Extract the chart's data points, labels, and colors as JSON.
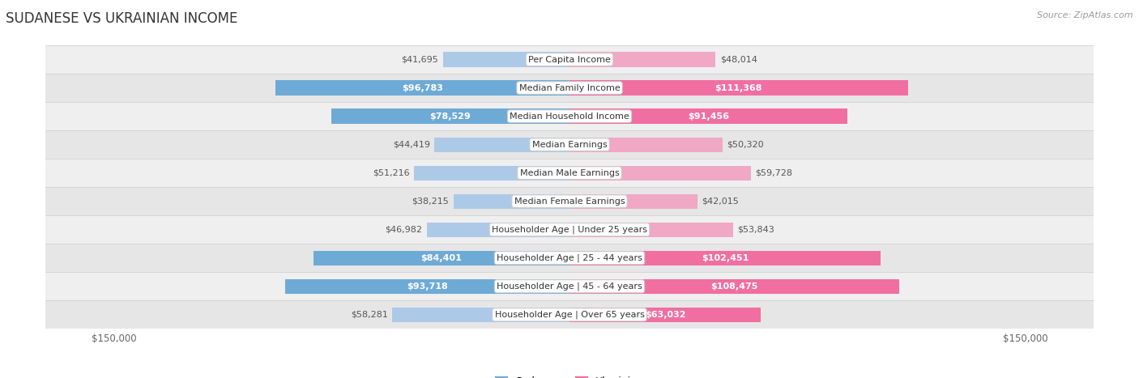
{
  "title": "SUDANESE VS UKRAINIAN INCOME",
  "source": "Source: ZipAtlas.com",
  "categories": [
    "Per Capita Income",
    "Median Family Income",
    "Median Household Income",
    "Median Earnings",
    "Median Male Earnings",
    "Median Female Earnings",
    "Householder Age | Under 25 years",
    "Householder Age | 25 - 44 years",
    "Householder Age | 45 - 64 years",
    "Householder Age | Over 65 years"
  ],
  "sudanese": [
    41695,
    96783,
    78529,
    44419,
    51216,
    38215,
    46982,
    84401,
    93718,
    58281
  ],
  "ukrainian": [
    48014,
    111368,
    91456,
    50320,
    59728,
    42015,
    53843,
    102451,
    108475,
    63032
  ],
  "max_val": 150000,
  "blue_dark": "#6eaad6",
  "blue_light": "#adc9e8",
  "pink_dark": "#f06fa0",
  "pink_light": "#f0a8c4",
  "row_bg_even": "#efefef",
  "row_bg_odd": "#e6e6e6",
  "label_inside_color": "#ffffff",
  "label_outside_color": "#555555",
  "label_font_size": 8.0,
  "title_font_size": 12,
  "source_font_size": 8,
  "legend_font_size": 9,
  "axis_font_size": 8.5,
  "bar_height": 0.52,
  "threshold": 60000
}
